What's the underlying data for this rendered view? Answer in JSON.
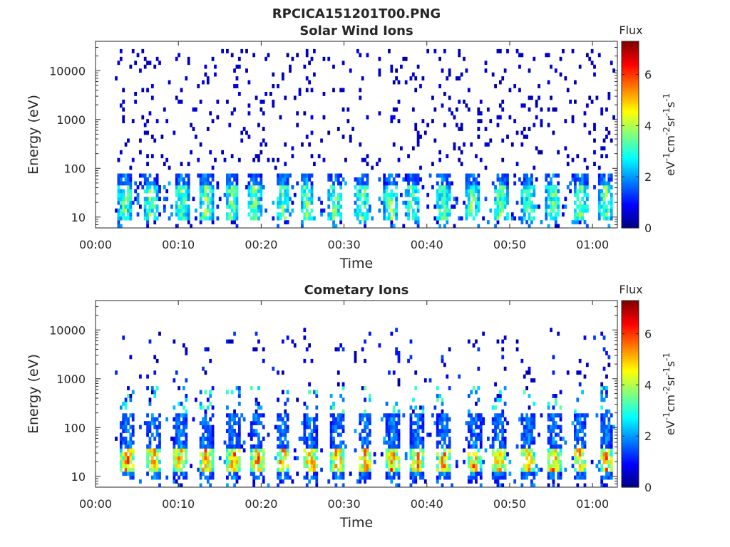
{
  "figure_title": "RPCICA151201T00.PNG",
  "chart_data": [
    {
      "type": "heatmap",
      "title": "Solar Wind Ions",
      "xlabel": "Time",
      "ylabel": "Energy (eV)",
      "x_ticks": [
        "00:00",
        "00:10",
        "00:20",
        "00:30",
        "00:40",
        "00:50",
        "01:00"
      ],
      "xlim_minutes": [
        0,
        63
      ],
      "y_scale": "log",
      "y_ticks": [
        "10",
        "100",
        "1000",
        "10000"
      ],
      "ylim": [
        6,
        40000
      ],
      "colorbar": {
        "title": "Flux",
        "label": "eV⁻¹cm⁻²sr⁻¹s⁻¹",
        "range": [
          0,
          7.3
        ],
        "ticks": [
          "0",
          "2",
          "4",
          "6"
        ]
      },
      "data_start_minute": 2.2,
      "cycle_minutes": [
        3.6,
        6.6,
        10.4,
        13.3,
        16.5,
        19.2,
        22.6,
        25.5,
        28.9,
        32.2,
        35.7,
        38.3,
        42.0,
        45.5,
        48.9,
        52.3,
        55.2,
        58.6,
        61.6
      ],
      "features": {
        "background_speckle_energy_range_eV": [
          100,
          30000
        ],
        "low_energy_band_eV": [
          8,
          80
        ],
        "peak_level": 4.5
      }
    },
    {
      "type": "heatmap",
      "title": "Cometary Ions",
      "xlabel": "Time",
      "ylabel": "Energy (eV)",
      "x_ticks": [
        "00:00",
        "00:10",
        "00:20",
        "00:30",
        "00:40",
        "00:50",
        "01:00"
      ],
      "xlim_minutes": [
        0,
        63
      ],
      "y_scale": "log",
      "y_ticks": [
        "10",
        "100",
        "1000",
        "10000"
      ],
      "ylim": [
        6,
        40000
      ],
      "colorbar": {
        "title": "Flux",
        "label": "eV⁻¹cm⁻²sr⁻¹s⁻¹",
        "range": [
          0,
          7.3
        ],
        "ticks": [
          "0",
          "2",
          "4",
          "6"
        ]
      },
      "data_start_minute": 2.2,
      "cycle_minutes": [
        3.9,
        7.0,
        10.3,
        13.3,
        16.7,
        19.6,
        22.6,
        26.0,
        29.2,
        32.5,
        35.8,
        38.8,
        42.1,
        45.7,
        48.7,
        52.2,
        55.3,
        58.5,
        61.7
      ],
      "features": {
        "background_speckle_energy_range_eV": [
          100,
          12000
        ],
        "low_energy_band_eV": [
          8,
          200
        ],
        "peak_band_eV": [
          12,
          40
        ],
        "peak_level": 6.6
      }
    }
  ]
}
